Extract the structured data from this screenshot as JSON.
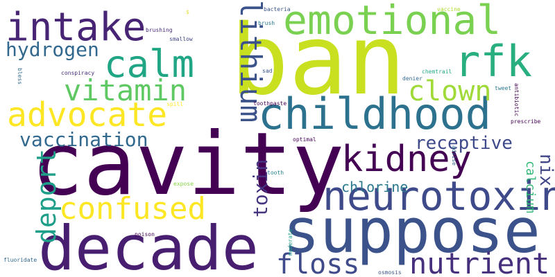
{
  "words": [
    {
      "id": "ban",
      "text": "ban",
      "color": "#c8e020",
      "orient": "h"
    },
    {
      "id": "cavity",
      "text": "cavity",
      "color": "#440154",
      "orient": "h"
    },
    {
      "id": "suppose",
      "text": "suppose",
      "color": "#3b528b",
      "orient": "h"
    },
    {
      "id": "decade",
      "text": "decade",
      "color": "#481f70",
      "orient": "h"
    },
    {
      "id": "childhood",
      "text": "childhood",
      "color": "#2c728e",
      "orient": "h"
    },
    {
      "id": "neurotoxin",
      "text": "neurotoxin",
      "color": "#3e4a89",
      "orient": "h"
    },
    {
      "id": "emotional",
      "text": "emotional",
      "color": "#7ad151",
      "orient": "h"
    },
    {
      "id": "intake",
      "text": "intake",
      "color": "#482475",
      "orient": "h"
    },
    {
      "id": "rfk",
      "text": "rfk",
      "color": "#29af7f",
      "orient": "h"
    },
    {
      "id": "calm",
      "text": "calm",
      "color": "#21a685",
      "orient": "h"
    },
    {
      "id": "advocate",
      "text": "advocate",
      "color": "#fde725",
      "orient": "h"
    },
    {
      "id": "kidney",
      "text": "kidney",
      "color": "#440154",
      "orient": "h"
    },
    {
      "id": "confused",
      "text": "confused",
      "color": "#fde725",
      "orient": "h"
    },
    {
      "id": "vitamin",
      "text": "vitamin",
      "color": "#5ec962",
      "orient": "h"
    },
    {
      "id": "clown",
      "text": "clown",
      "color": "#a0da39",
      "orient": "h"
    },
    {
      "id": "nutrient",
      "text": "nutrient",
      "color": "#46307e",
      "orient": "h"
    },
    {
      "id": "floss",
      "text": "floss",
      "color": "#3e4a89",
      "orient": "h"
    },
    {
      "id": "lithium",
      "text": "lithium",
      "color": "#3b528b",
      "orient": "v"
    },
    {
      "id": "deport",
      "text": "deport",
      "color": "#1f9e89",
      "orient": "u"
    },
    {
      "id": "hydrogen",
      "text": "hydrogen",
      "color": "#31688e",
      "orient": "h"
    },
    {
      "id": "vaccination",
      "text": "vaccination",
      "color": "#31688e",
      "orient": "h"
    },
    {
      "id": "receptive",
      "text": "receptive",
      "color": "#3e4a89",
      "orient": "h"
    },
    {
      "id": "toxin",
      "text": "toxin",
      "color": "#463480",
      "orient": "u"
    },
    {
      "id": "chlorine",
      "text": "chlorine",
      "color": "#2a788e",
      "orient": "h"
    },
    {
      "id": "nix",
      "text": "nix",
      "color": "#404688",
      "orient": "v"
    },
    {
      "id": "calcium",
      "text": "calcium",
      "color": "#35b779",
      "orient": "v"
    },
    {
      "id": "bless",
      "text": "bless",
      "color": "#31688e",
      "orient": "v",
      "size": "s"
    },
    {
      "id": "conspiracy",
      "text": "conspiracy",
      "color": "#472d7b",
      "orient": "h",
      "size": "s"
    },
    {
      "id": "bacteria",
      "text": "bacteria",
      "color": "#3b528b",
      "orient": "h",
      "size": "s"
    },
    {
      "id": "vaccine",
      "text": "vaccine",
      "color": "#addc30",
      "orient": "h",
      "size": "s"
    },
    {
      "id": "brushing",
      "text": "brushing",
      "color": "#472c7a",
      "orient": "h",
      "size": "s"
    },
    {
      "id": "smallow",
      "text": "smallow",
      "color": "#414487",
      "orient": "h",
      "size": "s"
    },
    {
      "id": "brush",
      "text": "brush",
      "color": "#2a788e",
      "orient": "h",
      "size": "s"
    },
    {
      "id": "sad",
      "text": "sad",
      "color": "#3b528b",
      "orient": "h",
      "size": "s"
    },
    {
      "id": "denier",
      "text": "denier",
      "color": "#31688e",
      "orient": "h",
      "size": "s"
    },
    {
      "id": "chemtrail",
      "text": "chemtrail",
      "color": "#22a884",
      "orient": "h",
      "size": "s"
    },
    {
      "id": "tweet",
      "text": "tweet",
      "color": "#2a788e",
      "orient": "h",
      "size": "s"
    },
    {
      "id": "antibiotic",
      "text": "antibiotic",
      "color": "#440154",
      "orient": "v",
      "size": "s"
    },
    {
      "id": "prescribe",
      "text": "prescribe",
      "color": "#440154",
      "orient": "h",
      "size": "s"
    },
    {
      "id": "toothpaste",
      "text": "toothpaste",
      "color": "#440154",
      "orient": "h",
      "size": "s"
    },
    {
      "id": "optimal",
      "text": "optimal",
      "color": "#440154",
      "orient": "h",
      "size": "s"
    },
    {
      "id": "advise",
      "text": "advise",
      "color": "#31688e",
      "orient": "v",
      "size": "s"
    },
    {
      "id": "tooth",
      "text": "tooth",
      "color": "#26828e",
      "orient": "h",
      "size": "s"
    },
    {
      "id": "expose",
      "text": "expose",
      "color": "#86d549",
      "orient": "h",
      "size": "s"
    },
    {
      "id": "poison",
      "text": "poison",
      "color": "#440154",
      "orient": "h",
      "size": "s"
    },
    {
      "id": "moderate",
      "text": "moderate",
      "color": "#1f9e89",
      "orient": "u",
      "size": "s"
    },
    {
      "id": "fluoridate",
      "text": "fluoridate",
      "color": "#31688e",
      "orient": "h",
      "size": "s"
    },
    {
      "id": "osmosis",
      "text": "osmosis",
      "color": "#3b528b",
      "orient": "h",
      "size": "s"
    },
    {
      "id": "spill",
      "text": "spill",
      "color": "#fde725",
      "orient": "h",
      "size": "s"
    },
    {
      "id": "dollar",
      "text": "$",
      "color": "#e0e040",
      "orient": "h",
      "size": "s"
    }
  ]
}
